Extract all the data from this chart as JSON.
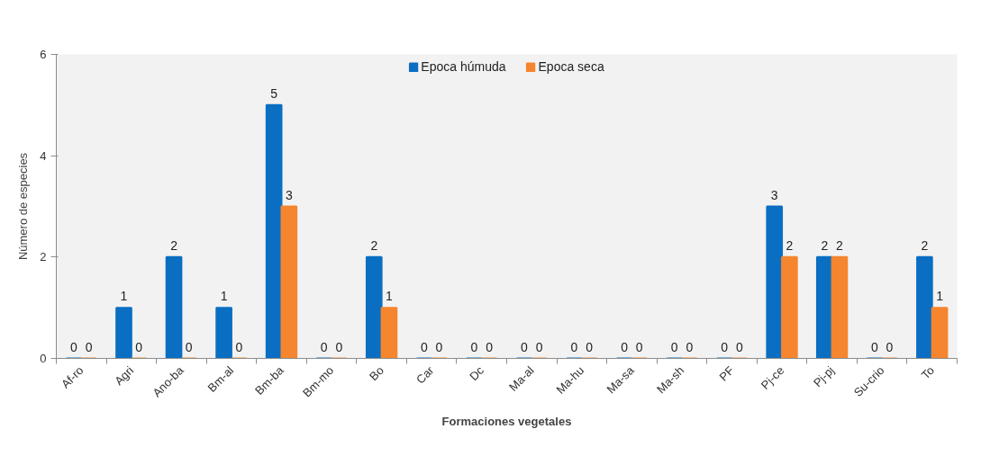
{
  "chart_data": {
    "type": "bar",
    "xlabel": "Formaciones vegetales",
    "ylabel": "Número de especies",
    "categories": [
      "Af-ro",
      "Agri",
      "Ano-ba",
      "Bm-al",
      "Bm-ba",
      "Bm-mo",
      "Bo",
      "Car",
      "Dc",
      "Ma-al",
      "Ma-hu",
      "Ma-sa",
      "Ma-sh",
      "PF",
      "Pj-ce",
      "Pj-pj",
      "Su-crio",
      "To"
    ],
    "series": [
      {
        "name": "Epoca húmuda",
        "color": "#0a6fc2",
        "values": [
          0,
          1,
          2,
          1,
          5,
          0,
          2,
          0,
          0,
          0,
          0,
          0,
          0,
          0,
          3,
          2,
          0,
          2
        ]
      },
      {
        "name": "Epoca seca",
        "color": "#f5852f",
        "values": [
          0,
          0,
          0,
          0,
          3,
          0,
          1,
          0,
          0,
          0,
          0,
          0,
          0,
          0,
          2,
          2,
          0,
          1
        ]
      }
    ],
    "ylim": [
      0,
      6
    ],
    "yticks": [
      0,
      2,
      4,
      6
    ],
    "data_labels": true,
    "grid": false,
    "legend": "top"
  }
}
